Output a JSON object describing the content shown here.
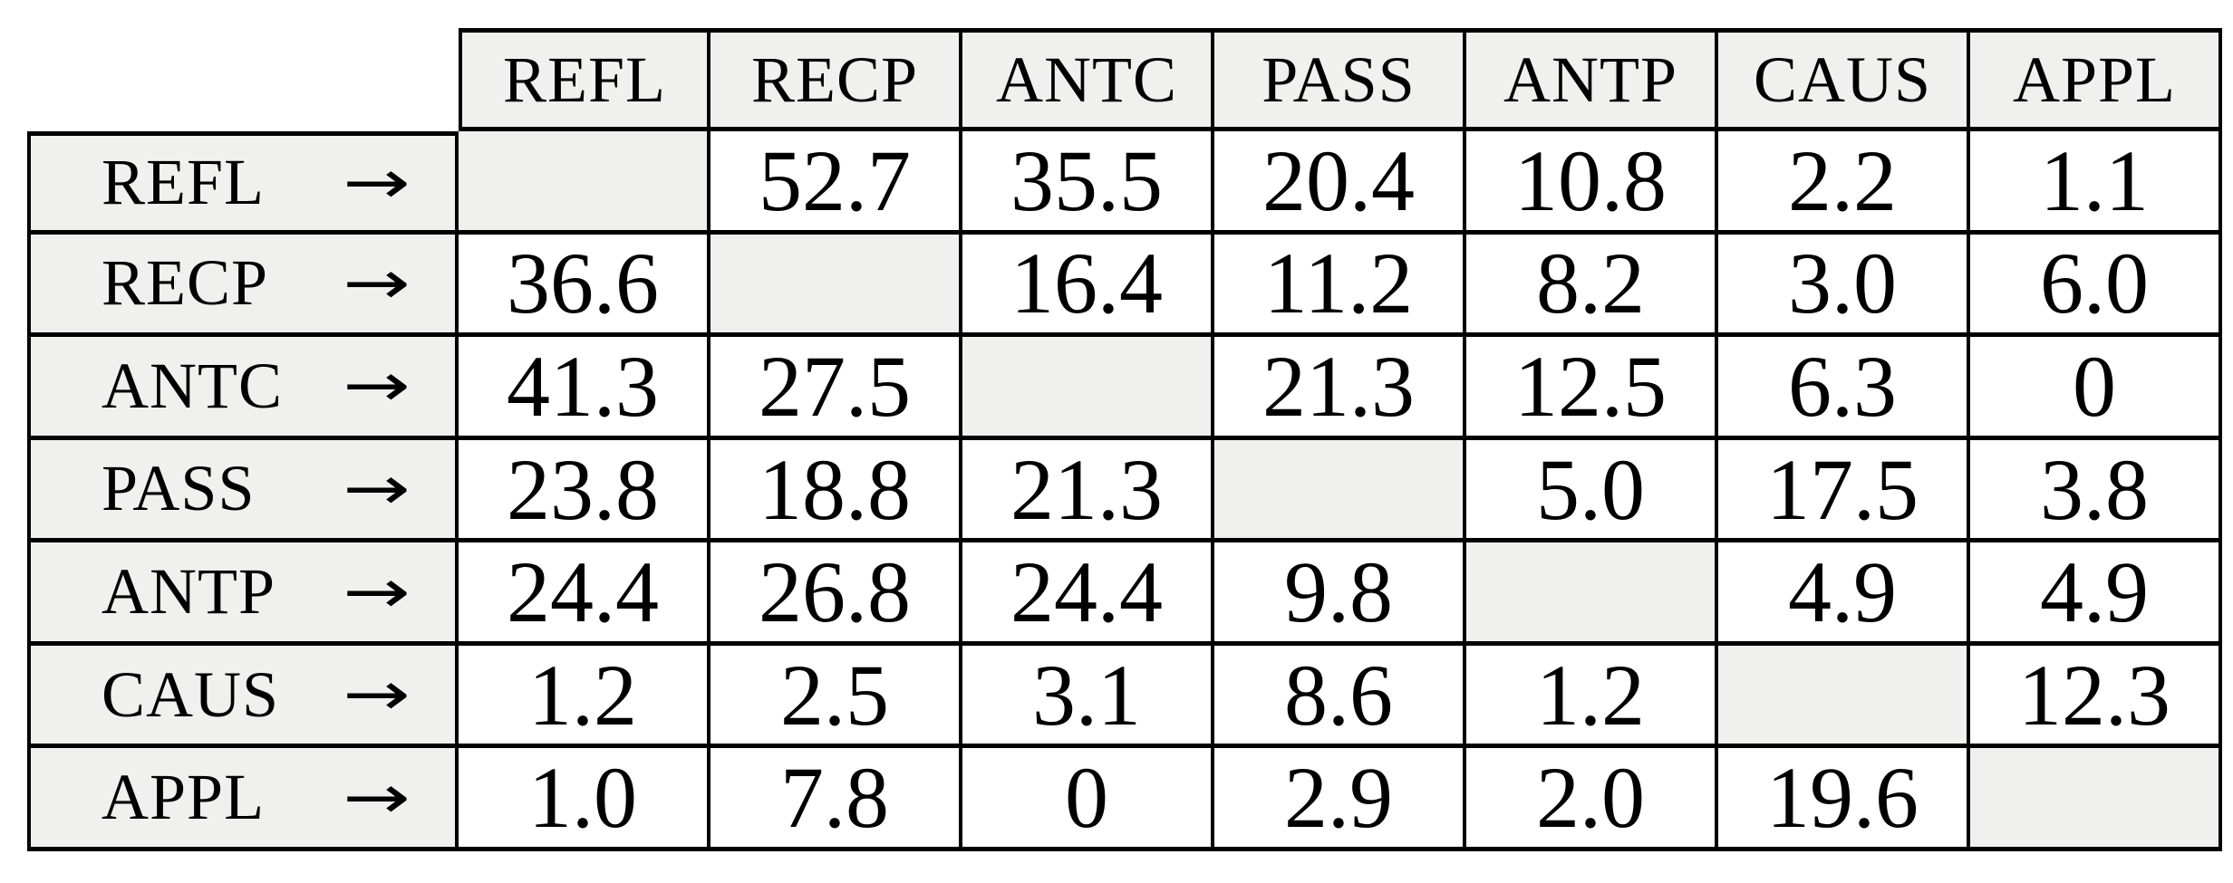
{
  "table": {
    "description": "co-occurrence matrix of valency markers",
    "arrow": "→",
    "columns": [
      "REFL",
      "RECP",
      "ANTC",
      "PASS",
      "ANTP",
      "CAUS",
      "APPL"
    ],
    "rows": [
      {
        "label": "REFL",
        "values": [
          "",
          "52.7",
          "35.5",
          "20.4",
          "10.8",
          "2.2",
          "1.1"
        ]
      },
      {
        "label": "RECP",
        "values": [
          "36.6",
          "",
          "16.4",
          "11.2",
          "8.2",
          "3.0",
          "6.0"
        ]
      },
      {
        "label": "ANTC",
        "values": [
          "41.3",
          "27.5",
          "",
          "21.3",
          "12.5",
          "6.3",
          "0"
        ]
      },
      {
        "label": "PASS",
        "values": [
          "23.8",
          "18.8",
          "21.3",
          "",
          "5.0",
          "17.5",
          "3.8"
        ]
      },
      {
        "label": "ANTP",
        "values": [
          "24.4",
          "26.8",
          "24.4",
          "9.8",
          "",
          "4.9",
          "4.9"
        ]
      },
      {
        "label": "CAUS",
        "values": [
          "1.2",
          "2.5",
          "3.1",
          "8.6",
          "1.2",
          "",
          "12.3"
        ]
      },
      {
        "label": "APPL",
        "values": [
          "1.0",
          "7.8",
          "0",
          "2.9",
          "2.0",
          "19.6",
          ""
        ]
      }
    ],
    "colors": {
      "shaded_bg": "#f0f0ee",
      "border": "#000000",
      "text": "#000000",
      "page_bg": "#ffffff"
    }
  }
}
